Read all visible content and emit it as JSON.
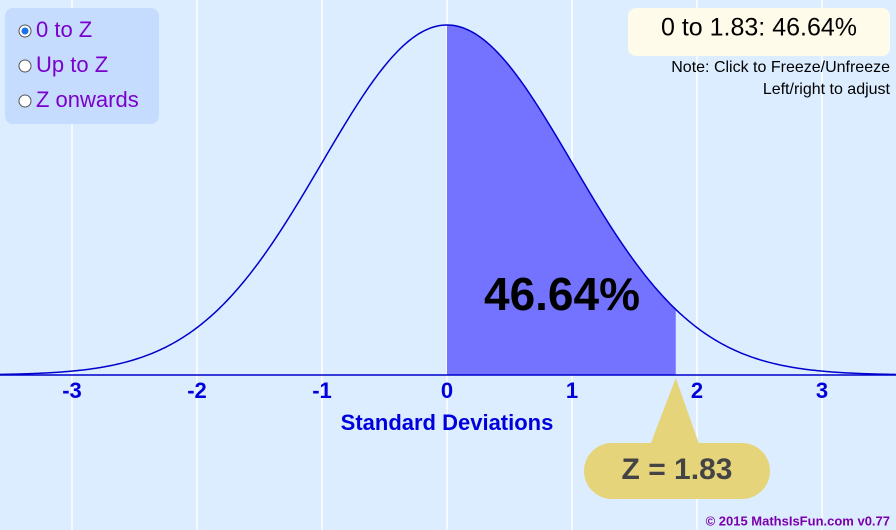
{
  "options": [
    "0 to Z",
    "Up to Z",
    "Z onwards"
  ],
  "selected": 0,
  "result": "0 to 1.83: 46.64%",
  "notes": [
    "Note: Click to Freeze/Unfreeze",
    "Left/right to adjust"
  ],
  "area_label": "46.64%",
  "axis": {
    "label": "Standard Deviations",
    "xlim": [
      -3.576,
      3.592
    ],
    "xticks": [
      -3,
      -2,
      -1,
      0,
      1,
      2,
      3
    ],
    "z": 1.83
  },
  "z_label": "Z = 1.83",
  "copyright": "© 2015 MathsIsFun.com v0.77"
}
